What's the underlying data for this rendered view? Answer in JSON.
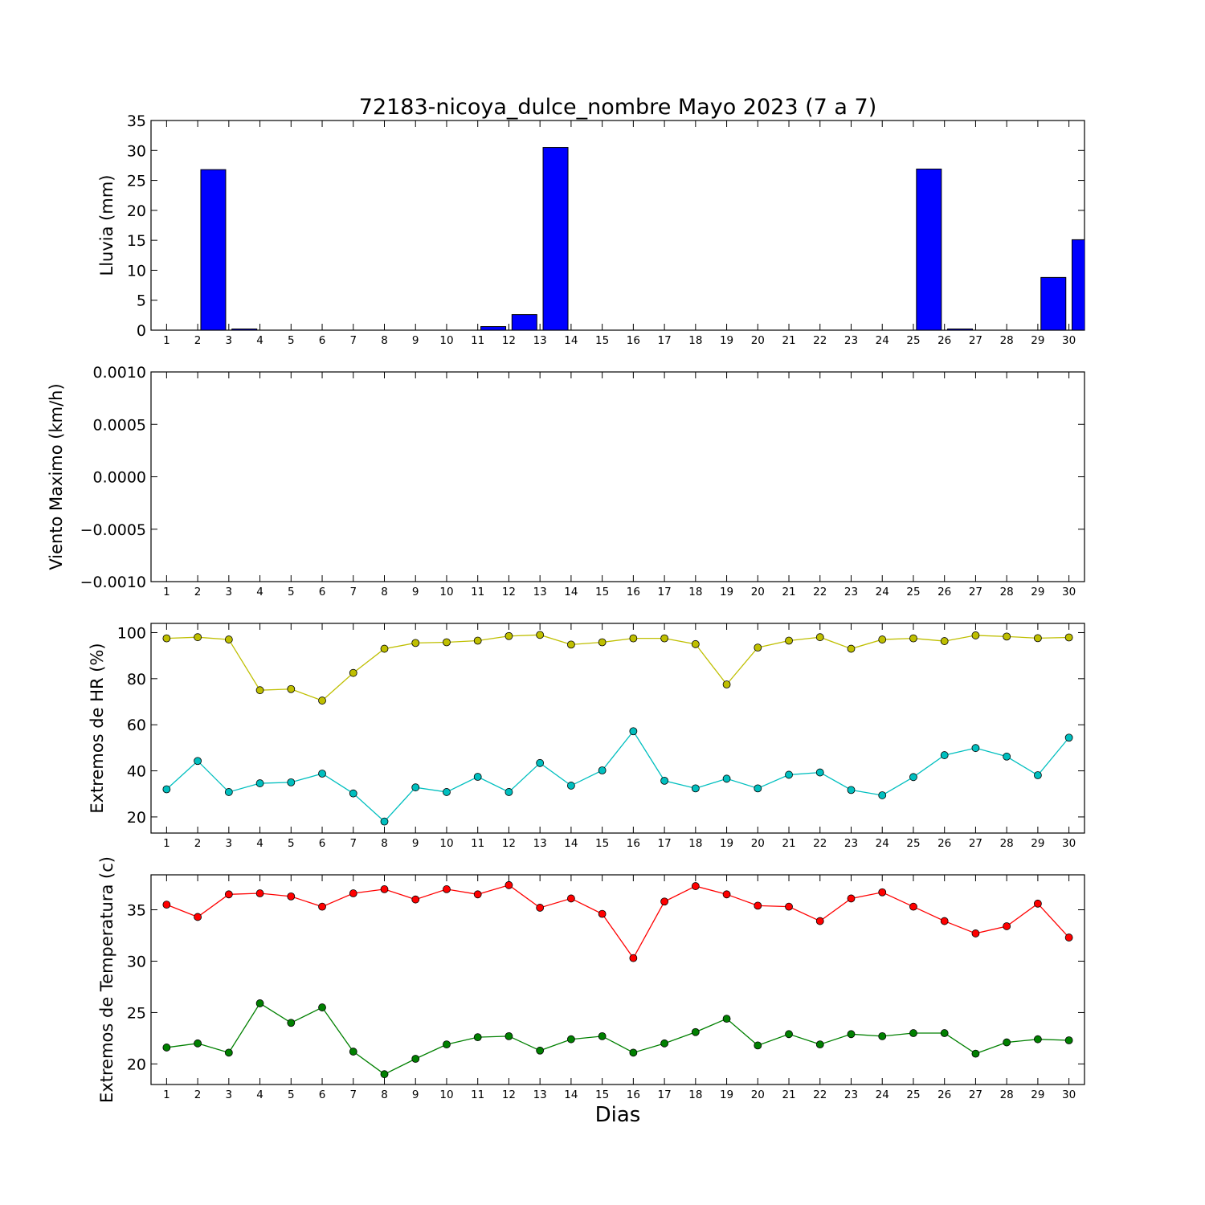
{
  "title": "72183-nicoya_dulce_nombre Mayo 2023  (7 a 7)",
  "xlabel": "Dias",
  "days": [
    1,
    2,
    3,
    4,
    5,
    6,
    7,
    8,
    9,
    10,
    11,
    12,
    13,
    14,
    15,
    16,
    17,
    18,
    19,
    20,
    21,
    22,
    23,
    24,
    25,
    26,
    27,
    28,
    29,
    30
  ],
  "chart_data": [
    {
      "type": "bar",
      "ylabel": "Lluvia (mm)",
      "ylim": [
        0,
        35
      ],
      "yticks": [
        0,
        5,
        10,
        15,
        20,
        25,
        30,
        35
      ],
      "ytick_labels": [
        "0",
        "5",
        "10",
        "15",
        "20",
        "25",
        "30",
        "35"
      ],
      "series": [
        {
          "color": "#0000ff",
          "values": [
            0,
            26.8,
            0.2,
            0,
            0,
            0,
            0,
            0,
            0,
            0,
            0.6,
            2.6,
            30.5,
            0,
            0,
            0,
            0,
            0,
            0,
            0,
            0,
            0,
            0,
            0,
            26.9,
            0.2,
            0,
            0,
            8.8,
            15.1
          ]
        }
      ]
    },
    {
      "type": "line",
      "ylabel": "Viento Maximo (km/h)",
      "ylim": [
        -0.001,
        0.001
      ],
      "yticks": [
        -0.001,
        -0.0005,
        0,
        0.0005,
        0.001
      ],
      "ytick_labels": [
        "−0.0010",
        "−0.0005",
        "0.0000",
        "0.0005",
        "0.0010"
      ],
      "series": []
    },
    {
      "type": "line",
      "ylabel": "Extremos de HR (%)",
      "ylim": [
        13,
        104
      ],
      "yticks": [
        20,
        40,
        60,
        80,
        100
      ],
      "ytick_labels": [
        "20",
        "40",
        "60",
        "80",
        "100"
      ],
      "series": [
        {
          "color": "#bfbf00",
          "values": [
            97.5,
            98,
            97,
            75,
            75.5,
            70.5,
            82.5,
            93,
            95.5,
            95.8,
            96.5,
            98.5,
            99,
            94.8,
            95.8,
            97.5,
            97.5,
            95,
            77.5,
            93.5,
            96.5,
            98,
            93,
            97,
            97.5,
            96.3,
            98.8,
            98.3,
            97.6,
            97.9
          ]
        },
        {
          "color": "#00bfbf",
          "values": [
            32,
            44.3,
            30.8,
            34.6,
            35,
            38.8,
            30.2,
            18,
            32.8,
            30.8,
            37.4,
            30.8,
            43.4,
            33.6,
            40.2,
            57.2,
            35.7,
            32.4,
            36.6,
            32.4,
            38.3,
            39.3,
            31.7,
            29.4,
            37.3,
            46.8,
            49.9,
            46.2,
            38.1,
            54.4
          ]
        }
      ]
    },
    {
      "type": "line",
      "ylabel": "Extremos de Temperatura (c)",
      "ylim": [
        18,
        38.4
      ],
      "yticks": [
        20,
        25,
        30,
        35
      ],
      "ytick_labels": [
        "20",
        "25",
        "30",
        "35"
      ],
      "series": [
        {
          "color": "#ff0000",
          "values": [
            35.5,
            34.3,
            36.5,
            36.6,
            36.3,
            35.3,
            36.6,
            37,
            36,
            37,
            36.5,
            37.4,
            35.2,
            36.1,
            34.6,
            30.3,
            35.8,
            37.3,
            36.5,
            35.4,
            35.3,
            33.9,
            36.1,
            36.7,
            35.3,
            33.9,
            32.7,
            33.4,
            35.6,
            32.3
          ]
        },
        {
          "color": "#008000",
          "values": [
            21.6,
            22,
            21.1,
            25.9,
            24,
            25.5,
            21.2,
            19,
            20.5,
            21.9,
            22.6,
            22.7,
            21.3,
            22.4,
            22.7,
            21.1,
            22,
            23.1,
            24.4,
            21.8,
            22.9,
            21.9,
            22.9,
            22.7,
            23,
            23,
            21,
            22.1,
            22.4,
            22.3
          ]
        }
      ]
    }
  ]
}
